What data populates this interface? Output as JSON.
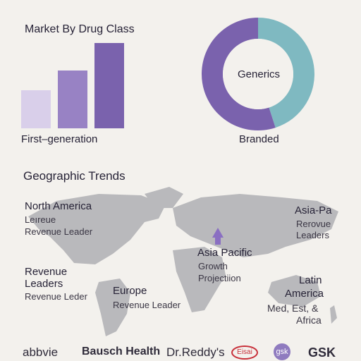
{
  "bar_section": {
    "title": "Market By Drug Class",
    "label": "First–generation"
  },
  "donut_section": {
    "center_label": "Generics",
    "bottom_label": "Branded"
  },
  "geo": {
    "title": "Geographic Trends",
    "north_america": {
      "name": "North America",
      "line1": "Leıreue",
      "line2": "Revenue Leader"
    },
    "asia_pa_right": {
      "name": "Asia-Pa",
      "line1": "Rerovue",
      "line2": "Leaders"
    },
    "asia_pacific": {
      "name": "Asia Pacific",
      "line1": "Growth",
      "line2": "Projectiion"
    },
    "left_block": {
      "line1": "Revenue",
      "line2": "Leaders",
      "line3": "Revenue Leder"
    },
    "europe": {
      "name": "Europe",
      "line1": "Revenue Leader"
    },
    "latin": {
      "line1": "Latin",
      "line2": "America",
      "line3": "Med, Est, &",
      "line4": "Africa"
    }
  },
  "logos": {
    "abbvie": "abbvie",
    "bausch": "Bausch Health",
    "dreddys": "Dr.Reddy's",
    "eisai": "Eisai",
    "gsk_circle": "gsk",
    "gsk": "GSK"
  },
  "chart_data": [
    {
      "type": "bar",
      "title": "Market By Drug Class",
      "xlabel": "First–generation",
      "categories": [
        "",
        "",
        ""
      ],
      "values": [
        0.38,
        0.58,
        0.85
      ],
      "colors": [
        "#d9cfea",
        "#9882c4",
        "#7a62ad"
      ]
    },
    {
      "type": "pie",
      "donut": true,
      "labels": [
        "Generics",
        "Branded"
      ],
      "values": [
        45,
        55
      ],
      "colors": [
        "#7fb9c1",
        "#7a62ad"
      ]
    }
  ]
}
